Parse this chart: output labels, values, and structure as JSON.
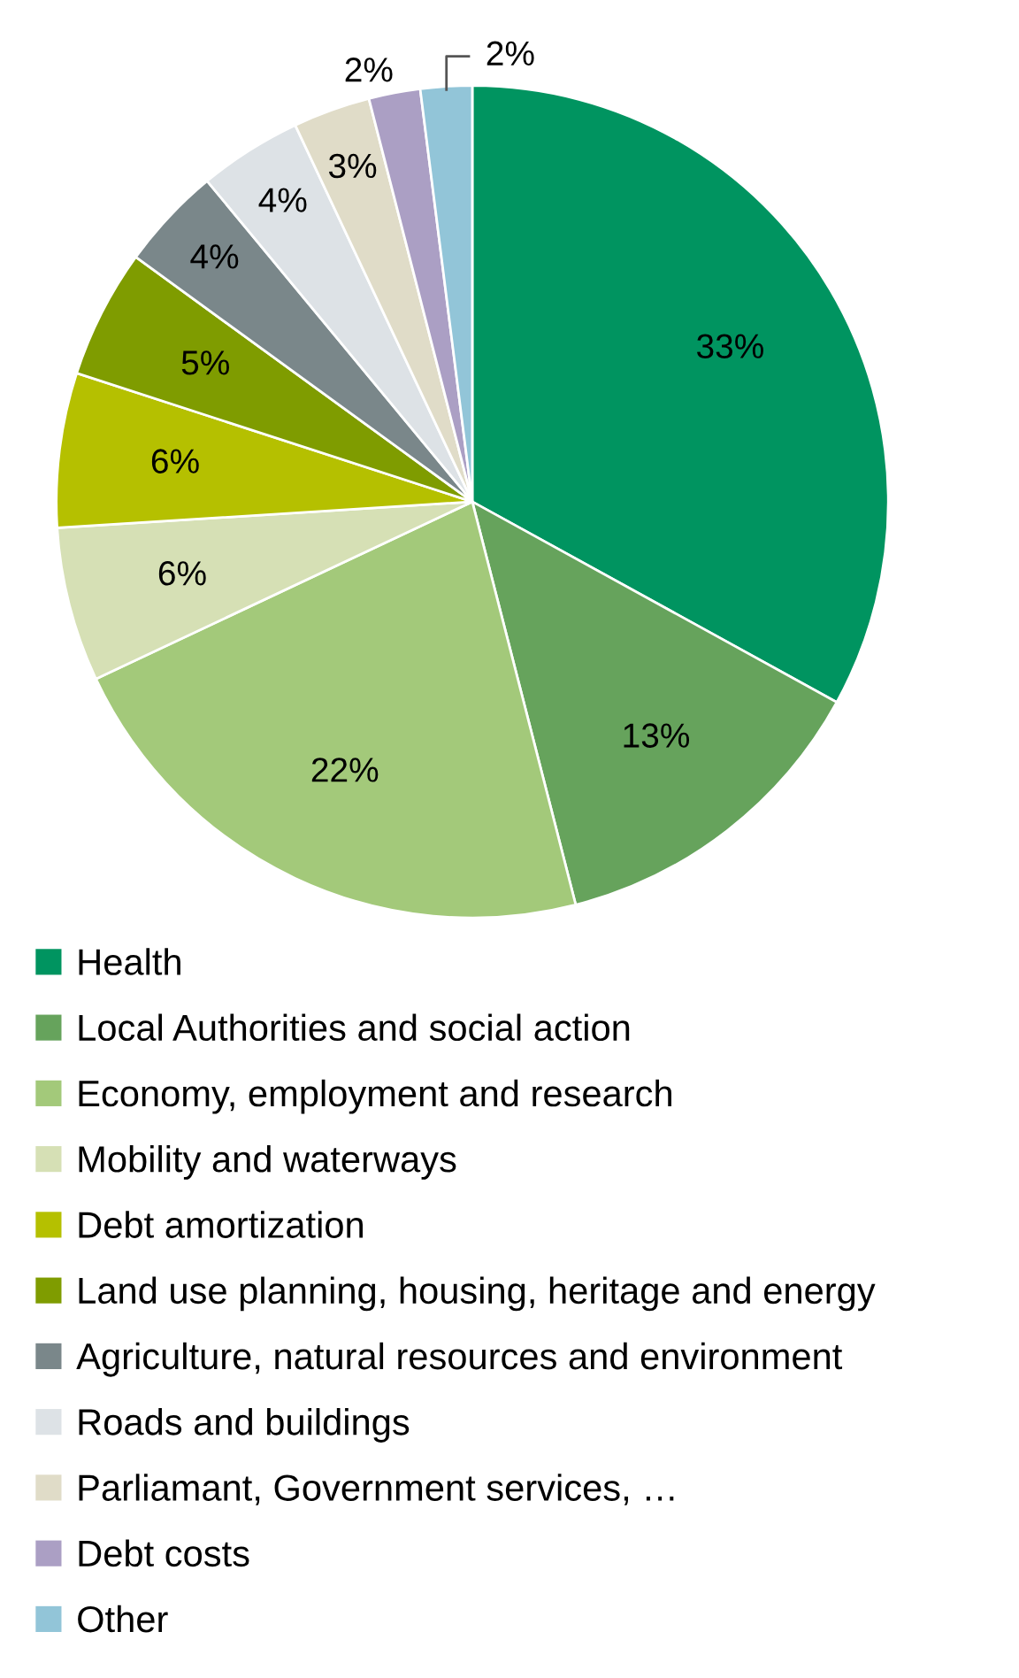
{
  "chart_data": {
    "type": "pie",
    "categories": [
      "Health",
      "Local Authorities and social action",
      "Economy, employment and research",
      "Mobility and waterways",
      "Debt amortization",
      "Land use planning, housing, heritage and energy",
      "Agriculture, natural resources and environment",
      "Roads and buildings",
      "Parliamant, Government services, …",
      "Debt costs",
      "Other"
    ],
    "values": [
      33,
      13,
      22,
      6,
      6,
      5,
      4,
      4,
      3,
      2,
      2
    ],
    "value_labels": [
      "33%",
      "13%",
      "22%",
      "6%",
      "6%",
      "5%",
      "4%",
      "4%",
      "3%",
      "2%",
      "2%"
    ],
    "colors": [
      "#009460",
      "#66a35c",
      "#a3c97a",
      "#d6e0b5",
      "#b5c000",
      "#7f9c00",
      "#7a878a",
      "#dde2e6",
      "#e0dcc8",
      "#ab9fc4",
      "#92c5d8"
    ],
    "legend": "bottom"
  }
}
